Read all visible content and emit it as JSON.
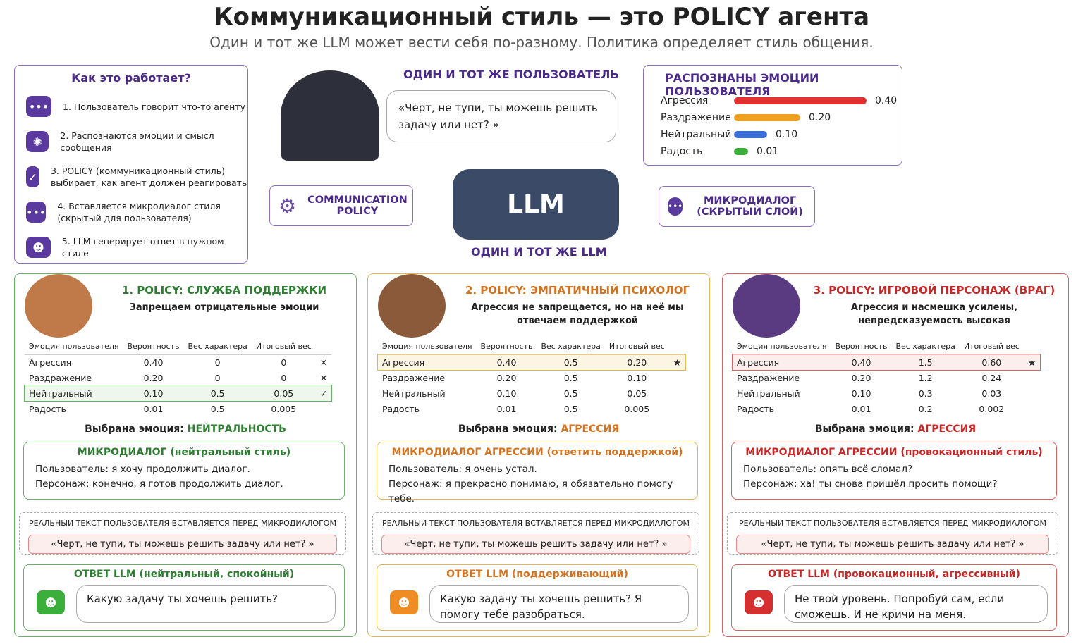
{
  "title": "Коммуникационный стиль — это POLICY агента",
  "subtitle": "Один и тот же LLM может вести себя по-разному. Политика определяет стиль общения.",
  "how": {
    "title": "Как это работает?",
    "steps": [
      "1. Пользователь говорит что-то агенту",
      "2. Распознаются эмоции и смысл сообщения",
      "3. POLICY (коммуникационный стиль) выбирает, как агент должен реагировать",
      "4. Вставляется микродиалог стиля (скрытый для пользователя)",
      "5. LLM генерирует ответ в нужном стиле"
    ]
  },
  "user": {
    "caption": "ОДИН И ТОТ ЖЕ ПОЛЬЗОВАТЕЛЬ",
    "quote": "«Черт, не тупи, ты можешь решить задачу или нет? »"
  },
  "emo": {
    "title": "РАСПОЗНАНЫ ЭМОЦИИ ПОЛЬЗОВАТЕЛЯ",
    "items": [
      {
        "label": "Агрессия",
        "value": 0.4,
        "color": "#e03030"
      },
      {
        "label": "Раздражение",
        "value": 0.2,
        "color": "#f0a020"
      },
      {
        "label": "Нейтральный",
        "value": 0.1,
        "color": "#3a6fd8"
      },
      {
        "label": "Радость",
        "value": 0.01,
        "color": "#3cae3c"
      }
    ]
  },
  "llm": {
    "badge": "LLM",
    "caption": "ОДИН И ТОТ ЖЕ LLM",
    "policy": "COMMUNICATION POLICY",
    "micro": "МИКРОДИАЛОГ (СКРЫТЫЙ СЛОЙ)"
  },
  "headers": [
    "Эмоция пользователя",
    "Вероятность",
    "Вес характера",
    "Итоговый вес"
  ],
  "cols": [
    {
      "title": "1. POLICY: СЛУЖБА ПОДДЕРЖКИ",
      "desc": "Запрещаем отрицательные эмоции",
      "rows": [
        [
          "Агрессия",
          "0.40",
          "0",
          "0",
          "✕"
        ],
        [
          "Раздражение",
          "0.20",
          "0",
          "0",
          "✕"
        ],
        [
          "Нейтральный",
          "0.10",
          "0.5",
          "0.05",
          "✓"
        ],
        [
          "Радость",
          "0.01",
          "0.5",
          "0.005",
          ""
        ]
      ],
      "sel_label": "Выбрана эмоция:",
      "sel": "НЕЙТРАЛЬНОСТЬ",
      "mini_title": "МИКРОДИАЛОГ (нейтральный стиль)",
      "u_label": "Пользователь:",
      "u": "я хочу продолжить диалог.",
      "p_label": "Персонаж:",
      "p": "конечно, я готов продолжить диалог.",
      "rt": "РЕАЛЬНЫЙ ТЕКСТ ПОЛЬЗОВАТЕЛЯ ВСТАВЛЯЕТСЯ ПЕРЕД МИКРОДИАЛОГОМ",
      "q": "«Черт, не тупи, ты можешь решить задачу или нет? »",
      "ans_title": "ОТВЕТ LLM (нейтральный, спокойный)",
      "ans": "Какую задачу ты хочешь решить?"
    },
    {
      "title": "2. POLICY: ЭМПАТИЧНЫЙ ПСИХОЛОГ",
      "desc": "Агрессия не запрещается, но на неё мы отвечаем поддержкой",
      "rows": [
        [
          "Агрессия",
          "0.40",
          "0.5",
          "0.20",
          "★"
        ],
        [
          "Раздражение",
          "0.20",
          "0.5",
          "0.10",
          ""
        ],
        [
          "Нейтральный",
          "0.10",
          "0.5",
          "0.05",
          ""
        ],
        [
          "Радость",
          "0.01",
          "0.5",
          "0.005",
          ""
        ]
      ],
      "sel_label": "Выбрана эмоция:",
      "sel": "АГРЕССИЯ",
      "mini_title": "МИКРОДИАЛОГ АГРЕССИИ (ответить поддержкой)",
      "u_label": "Пользователь:",
      "u": "я очень устал.",
      "p_label": "Персонаж:",
      "p": "я прекрасно понимаю, я обязательно помогу тебе.",
      "rt": "РЕАЛЬНЫЙ ТЕКСТ ПОЛЬЗОВАТЕЛЯ ВСТАВЛЯЕТСЯ ПЕРЕД МИКРОДИАЛОГОМ",
      "q": "«Черт, не тупи, ты можешь решить задачу или нет? »",
      "ans_title": "ОТВЕТ LLM (поддерживающий)",
      "ans": "Какую задачу ты хочешь решить? Я помогу тебе разобраться."
    },
    {
      "title": "3. POLICY: ИГРОВОЙ ПЕРСОНАЖ (ВРАГ)",
      "desc": "Агрессия и насмешка усилены, непредсказуемость высокая",
      "rows": [
        [
          "Агрессия",
          "0.40",
          "1.5",
          "0.60",
          "★"
        ],
        [
          "Раздражение",
          "0.20",
          "1.2",
          "0.24",
          ""
        ],
        [
          "Нейтральный",
          "0.10",
          "0.3",
          "0.03",
          ""
        ],
        [
          "Радость",
          "0.01",
          "0.2",
          "0.002",
          ""
        ]
      ],
      "sel_label": "Выбрана эмоция:",
      "sel": "АГРЕССИЯ",
      "mini_title": "МИКРОДИАЛОГ АГРЕССИИ (провокационный стиль)",
      "u_label": "Пользователь:",
      "u": "опять всё сломал?",
      "p_label": "Персонаж:",
      "p": "ха! ты снова пришёл просить помощи?",
      "rt": "РЕАЛЬНЫЙ ТЕКСТ ПОЛЬЗОВАТЕЛЯ ВСТАВЛЯЕТСЯ ПЕРЕД МИКРОДИАЛОГОМ",
      "q": "«Черт, не тупи, ты можешь решить задачу или нет? »",
      "ans_title": "ОТВЕТ LLM (провокационный, агрессивный)",
      "ans": "Не твой уровень. Попробуй сам, если сможешь. И не кричи на меня."
    }
  ]
}
